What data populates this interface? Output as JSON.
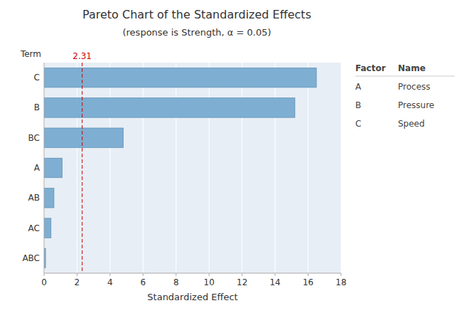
{
  "chart_data": {
    "type": "bar",
    "orientation": "horizontal",
    "title": "Pareto Chart of the Standardized Effects",
    "subtitle": "(response is Strength, α = 0.05)",
    "x_label": "Standardized Effect",
    "y_label": "Term",
    "categories": [
      "ABC",
      "AC",
      "AB",
      "A",
      "BC",
      "B",
      "C"
    ],
    "values": [
      0.09,
      0.42,
      0.6,
      1.1,
      4.8,
      15.2,
      16.5
    ],
    "color": "#7eaed1",
    "xlim": [
      0,
      18
    ],
    "xticks": [
      0,
      2,
      4,
      6,
      8,
      10,
      12,
      14,
      16,
      18
    ],
    "grid": true,
    "reference_lines": [
      {
        "value": 2.31,
        "label": "2.31",
        "color": "#cc0000"
      }
    ],
    "table": {
      "header": [
        "Factor",
        "Name"
      ],
      "rows": [
        [
          "A",
          "Process"
        ],
        [
          "B",
          "Pressure"
        ],
        [
          "C",
          "Speed"
        ]
      ]
    }
  }
}
